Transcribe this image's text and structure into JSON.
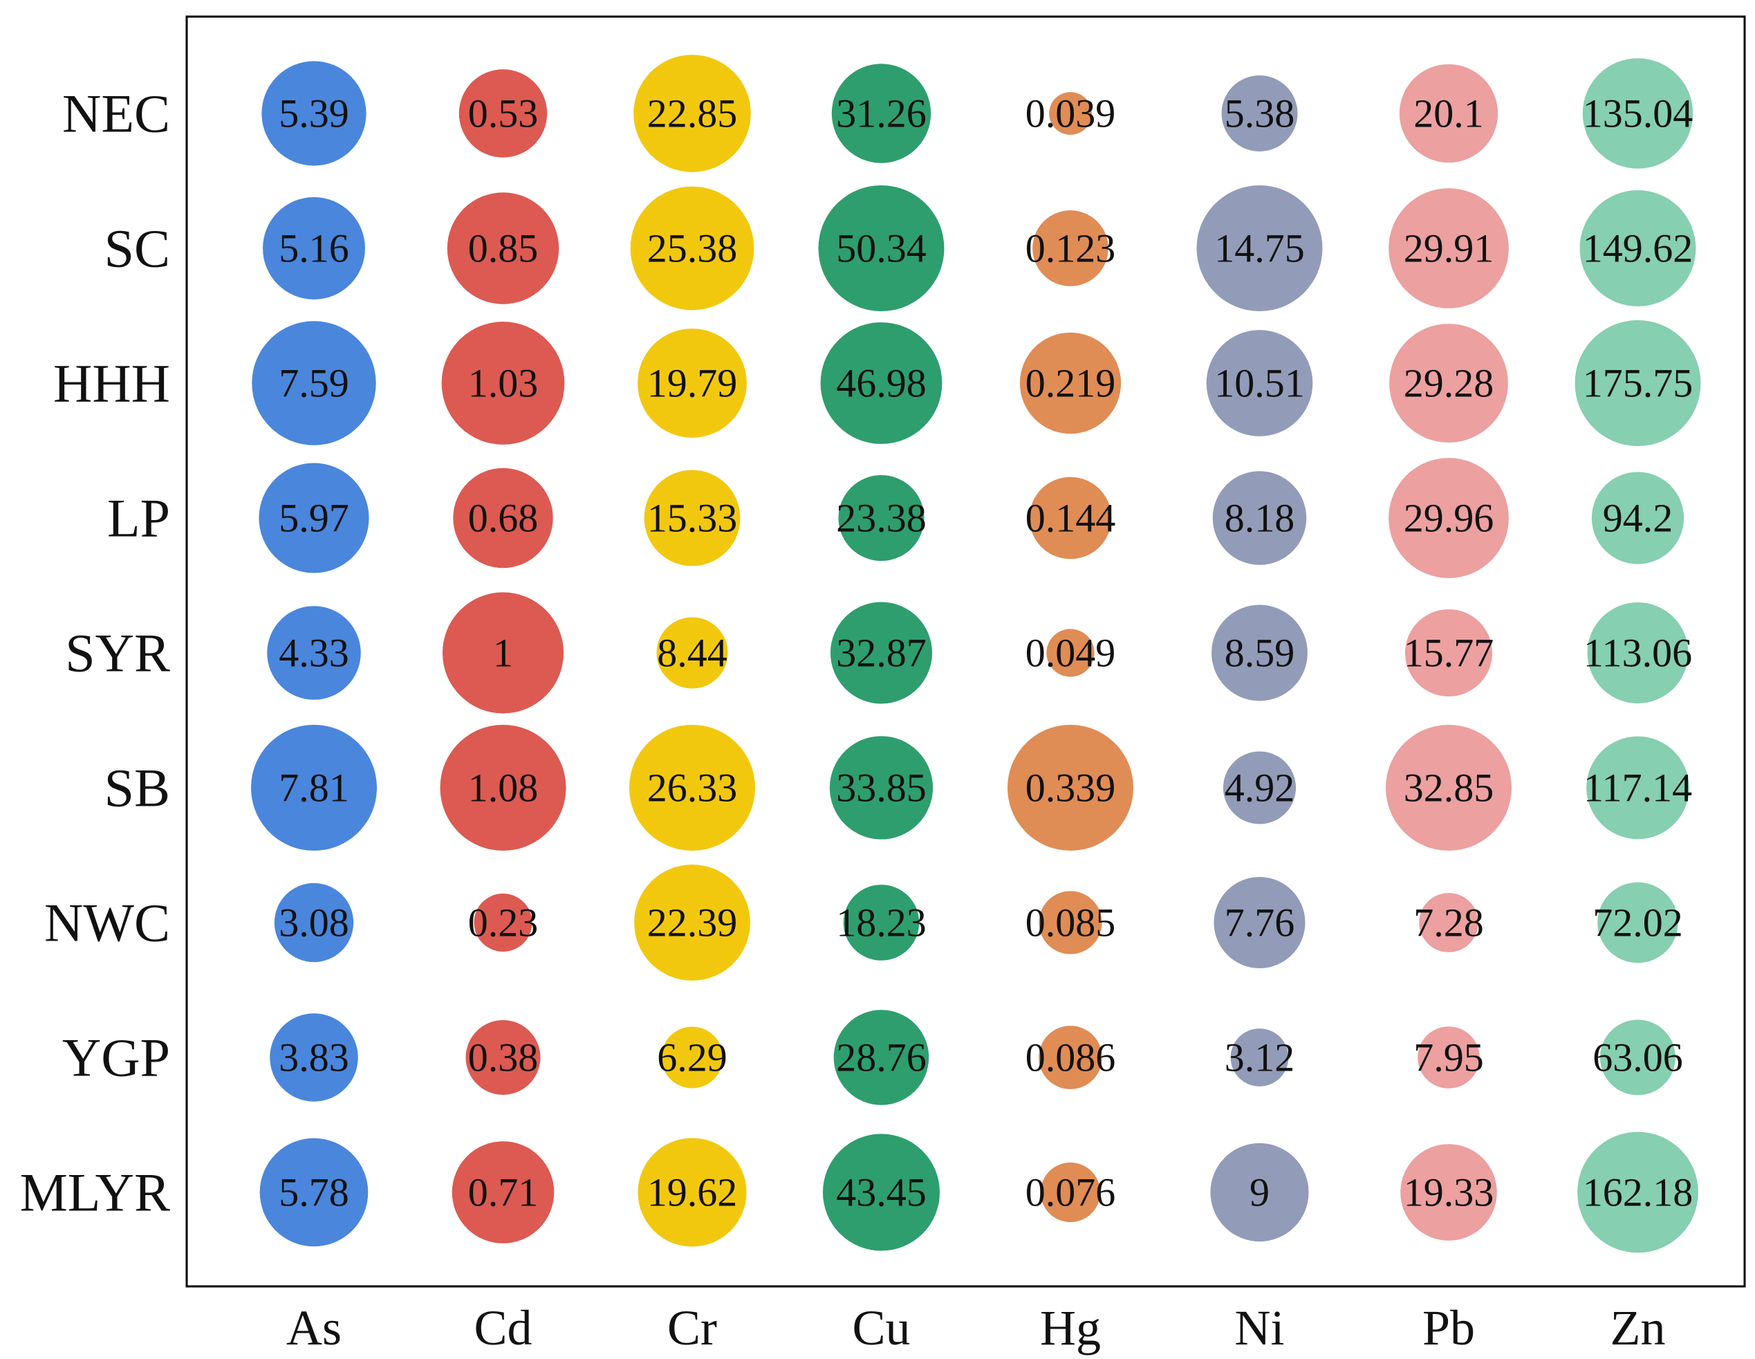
{
  "chart_data": {
    "type": "bubble",
    "categories": [
      "NEC",
      "SC",
      "HHH",
      "LP",
      "SYR",
      "SB",
      "NWC",
      "YGP",
      "MLYR"
    ],
    "series": [
      {
        "name": "As",
        "color": "#4a86dc",
        "values": [
          5.39,
          5.16,
          7.59,
          5.97,
          4.33,
          7.81,
          3.08,
          3.83,
          5.78
        ]
      },
      {
        "name": "Cd",
        "color": "#dc5a52",
        "values": [
          0.53,
          0.85,
          1.03,
          0.68,
          1,
          1.08,
          0.23,
          0.38,
          0.71
        ]
      },
      {
        "name": "Cr",
        "color": "#f2c80f",
        "values": [
          22.85,
          25.38,
          19.79,
          15.33,
          8.44,
          26.33,
          22.39,
          6.29,
          19.62
        ]
      },
      {
        "name": "Cu",
        "color": "#2e9e6e",
        "values": [
          31.26,
          50.34,
          46.98,
          23.38,
          32.87,
          33.85,
          18.23,
          28.76,
          43.45
        ]
      },
      {
        "name": "Hg",
        "color": "#e08c55",
        "values": [
          0.039,
          0.123,
          0.219,
          0.144,
          0.049,
          0.339,
          0.085,
          0.086,
          0.076
        ]
      },
      {
        "name": "Ni",
        "color": "#929cb8",
        "values": [
          5.38,
          14.75,
          10.51,
          8.18,
          8.59,
          4.92,
          7.76,
          3.12,
          9
        ]
      },
      {
        "name": "Pb",
        "color": "#eca0a0",
        "values": [
          20.1,
          29.91,
          29.28,
          29.96,
          15.77,
          32.85,
          7.28,
          7.95,
          19.33
        ]
      },
      {
        "name": "Zn",
        "color": "#86cfb0",
        "values": [
          135.04,
          149.62,
          175.75,
          94.2,
          113.06,
          117.14,
          72.02,
          63.06,
          162.18
        ]
      }
    ]
  }
}
